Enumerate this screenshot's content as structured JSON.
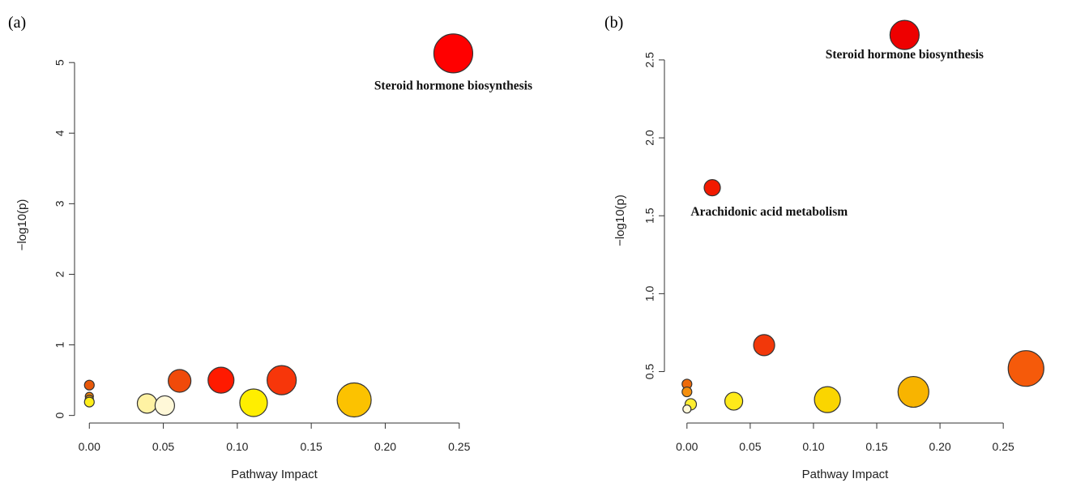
{
  "chart_data": [
    {
      "panel_label": "(a)",
      "type": "scatter",
      "xlabel": "Pathway Impact",
      "ylabel": "−log10(p)",
      "xlim": [
        -0.01,
        0.26
      ],
      "ylim": [
        -0.05,
        5.45
      ],
      "x_ticks": [
        0.0,
        0.05,
        0.1,
        0.15,
        0.2,
        0.25
      ],
      "x_tick_labels": [
        "0.00",
        "0.05",
        "0.10",
        "0.15",
        "0.20",
        "0.25"
      ],
      "y_ticks": [
        0,
        1,
        2,
        3,
        4,
        5
      ],
      "y_tick_labels": [
        "0",
        "1",
        "2",
        "3",
        "4",
        "5"
      ],
      "grid": false,
      "points": [
        {
          "x": 0.0,
          "y": 0.43,
          "size": 6,
          "color": "#e8580a"
        },
        {
          "x": 0.0,
          "y": 0.27,
          "size": 5,
          "color": "#f07f0c"
        },
        {
          "x": 0.0,
          "y": 0.23,
          "size": 5,
          "color": "#f5a30e"
        },
        {
          "x": 0.0,
          "y": 0.19,
          "size": 6,
          "color": "#ffee1a"
        },
        {
          "x": 0.039,
          "y": 0.17,
          "size": 12,
          "color": "#fff2a3"
        },
        {
          "x": 0.051,
          "y": 0.14,
          "size": 12,
          "color": "#fff8d8"
        },
        {
          "x": 0.061,
          "y": 0.49,
          "size": 14,
          "color": "#f04a0a"
        },
        {
          "x": 0.089,
          "y": 0.5,
          "size": 16,
          "color": "#ff1a00"
        },
        {
          "x": 0.111,
          "y": 0.18,
          "size": 17,
          "color": "#ffee00"
        },
        {
          "x": 0.13,
          "y": 0.5,
          "size": 18,
          "color": "#f7360a"
        },
        {
          "x": 0.179,
          "y": 0.22,
          "size": 21,
          "color": "#fcc200"
        },
        {
          "x": 0.246,
          "y": 5.13,
          "size": 24,
          "color": "#ff0000"
        }
      ],
      "annotations": [
        {
          "text": "Steroid hormone biosynthesis",
          "x": 0.246,
          "y": 4.62
        }
      ]
    },
    {
      "panel_label": "(b)",
      "type": "scatter",
      "xlabel": "Pathway Impact",
      "ylabel": "−log10(p)",
      "xlim": [
        -0.005,
        0.28
      ],
      "ylim": [
        0.17,
        2.77
      ],
      "x_ticks": [
        0.0,
        0.05,
        0.1,
        0.15,
        0.2,
        0.25
      ],
      "x_tick_labels": [
        "0.00",
        "0.05",
        "0.10",
        "0.15",
        "0.20",
        "0.25"
      ],
      "y_ticks": [
        0.5,
        1.0,
        1.5,
        2.0,
        2.5
      ],
      "y_tick_labels": [
        "0.5",
        "1.0",
        "1.5",
        "2.0",
        "2.5"
      ],
      "grid": false,
      "points": [
        {
          "x": 0.0,
          "y": 0.42,
          "size": 6,
          "color": "#ee6a0a"
        },
        {
          "x": 0.0,
          "y": 0.37,
          "size": 6,
          "color": "#f48f0e"
        },
        {
          "x": 0.003,
          "y": 0.29,
          "size": 7,
          "color": "#ffee30"
        },
        {
          "x": 0.0,
          "y": 0.26,
          "size": 5,
          "color": "#fff8d8"
        },
        {
          "x": 0.02,
          "y": 1.68,
          "size": 10,
          "color": "#f21a00"
        },
        {
          "x": 0.037,
          "y": 0.31,
          "size": 11,
          "color": "#ffea1a"
        },
        {
          "x": 0.061,
          "y": 0.67,
          "size": 13,
          "color": "#f2380a"
        },
        {
          "x": 0.111,
          "y": 0.32,
          "size": 16,
          "color": "#fad500"
        },
        {
          "x": 0.179,
          "y": 0.37,
          "size": 19,
          "color": "#f8b400"
        },
        {
          "x": 0.172,
          "y": 2.66,
          "size": 18,
          "color": "#ee0000"
        },
        {
          "x": 0.268,
          "y": 0.52,
          "size": 22,
          "color": "#f55a0a"
        }
      ],
      "annotations": [
        {
          "text": "Arachidonic acid metabolism",
          "x": 0.065,
          "y": 1.5
        },
        {
          "text": "Steroid hormone biosynthesis",
          "x": 0.172,
          "y": 2.51
        }
      ]
    }
  ]
}
